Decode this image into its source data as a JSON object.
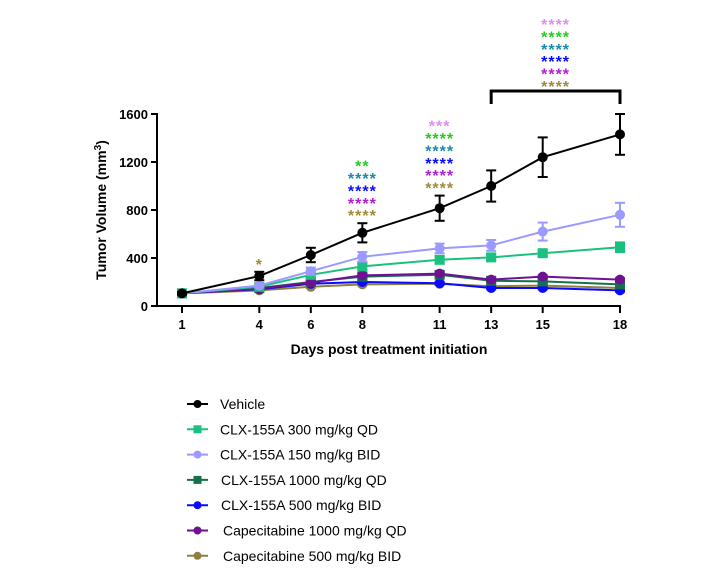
{
  "chart_data": {
    "type": "line",
    "xlabel": "Days post treatment initiation",
    "ylabel": "Tumor Volume (mm",
    "ylabel_sup": "3",
    "ylabel_close": ")",
    "x": [
      1,
      4,
      6,
      8,
      11,
      13,
      15,
      18
    ],
    "xticks": [
      "1",
      "4",
      "6",
      "8",
      "11",
      "13",
      "15",
      "18"
    ],
    "ylim": [
      0,
      1600
    ],
    "yticks": [
      "0",
      "400",
      "800",
      "1200",
      "1600"
    ],
    "grid": false,
    "legend_position": "bottom",
    "series": [
      {
        "name": "Vehicle",
        "color": "#000000",
        "marker": "circle",
        "values": [
          105,
          250,
          425,
          610,
          815,
          1000,
          1240,
          1430
        ],
        "errors": [
          10,
          35,
          60,
          80,
          105,
          130,
          165,
          170
        ]
      },
      {
        "name": "CLX-155A 300 mg/kg QD",
        "color": "#19c07e",
        "marker": "square",
        "values": [
          105,
          160,
          260,
          330,
          385,
          405,
          440,
          490
        ],
        "errors": [
          8,
          15,
          25,
          25,
          30,
          25,
          25,
          40
        ]
      },
      {
        "name": "CLX-155A 150 mg/kg BID",
        "color": "#9a9aff",
        "marker": "circle",
        "values": [
          105,
          170,
          290,
          410,
          480,
          505,
          620,
          760
        ],
        "errors": [
          8,
          15,
          30,
          40,
          40,
          45,
          75,
          100
        ]
      },
      {
        "name": "CLX-155A 1000 mg/kg QD",
        "color": "#17704c",
        "marker": "square",
        "values": [
          105,
          150,
          200,
          245,
          260,
          210,
          205,
          180
        ],
        "errors": [
          8,
          10,
          15,
          20,
          20,
          15,
          15,
          15
        ]
      },
      {
        "name": "CLX-155A 500 mg/kg BID",
        "color": "#0a0aff",
        "marker": "circle",
        "values": [
          105,
          140,
          185,
          200,
          190,
          150,
          150,
          130
        ],
        "errors": [
          8,
          10,
          12,
          12,
          12,
          10,
          10,
          10
        ]
      },
      {
        "name": "Capecitabine 1000 mg/kg QD",
        "color": "#6e1294",
        "marker": "circle",
        "values": [
          105,
          145,
          195,
          255,
          270,
          220,
          245,
          220
        ],
        "errors": [
          8,
          10,
          12,
          15,
          15,
          12,
          12,
          12
        ]
      },
      {
        "name": "Capecitabine 500 mg/kg BID",
        "color": "#8c8040",
        "marker": "circle",
        "values": [
          105,
          130,
          160,
          180,
          185,
          165,
          170,
          150
        ],
        "errors": [
          8,
          10,
          10,
          10,
          10,
          10,
          10,
          10
        ]
      }
    ],
    "annotations": [
      {
        "day": 4,
        "rows": [
          {
            "text": "*",
            "color": "#a08a3a"
          }
        ]
      },
      {
        "day": 8,
        "rows": [
          {
            "text": "**",
            "color": "#22cc22"
          },
          {
            "text": "****",
            "color": "#1a8aa8"
          },
          {
            "text": "****",
            "color": "#0a0aff"
          },
          {
            "text": "****",
            "color": "#b020d0"
          },
          {
            "text": "****",
            "color": "#a08a3a"
          }
        ]
      },
      {
        "day": 11,
        "rows": [
          {
            "text": "***",
            "color": "#e08cf0"
          },
          {
            "text": "****",
            "color": "#22cc22"
          },
          {
            "text": "****",
            "color": "#1a8aa8"
          },
          {
            "text": "****",
            "color": "#0a0aff"
          },
          {
            "text": "****",
            "color": "#b020d0"
          },
          {
            "text": "****",
            "color": "#a08a3a"
          }
        ]
      },
      {
        "bracket": [
          13,
          18
        ],
        "rows": [
          {
            "text": "****",
            "color": "#e08cf0"
          },
          {
            "text": "****",
            "color": "#22cc22"
          },
          {
            "text": "****",
            "color": "#1a8aa8"
          },
          {
            "text": "****",
            "color": "#0a0aff"
          },
          {
            "text": "****",
            "color": "#b020d0"
          },
          {
            "text": "****",
            "color": "#a08a3a"
          }
        ]
      }
    ]
  }
}
